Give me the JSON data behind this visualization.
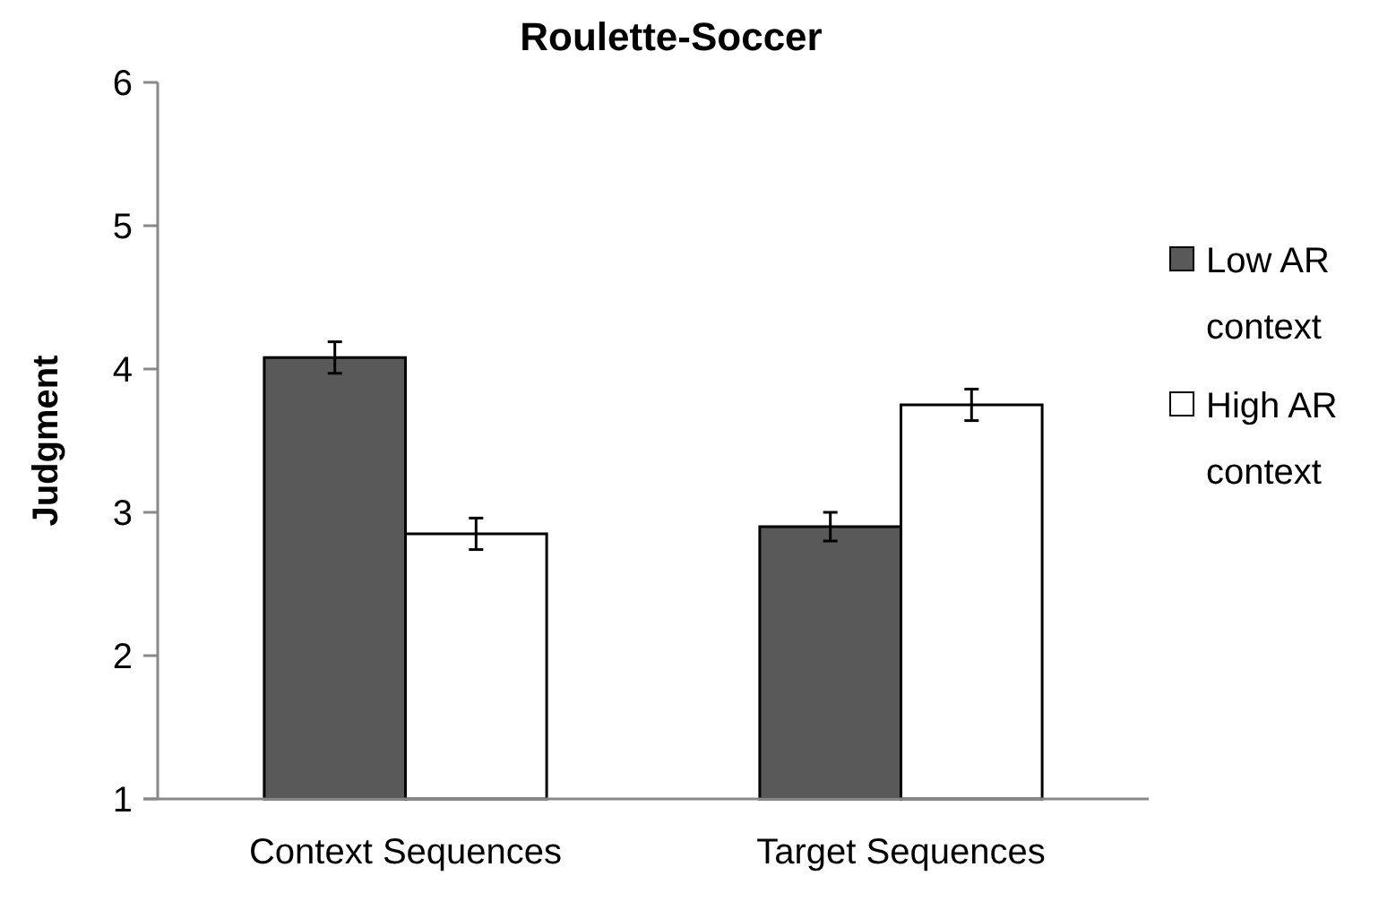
{
  "chart_data": {
    "type": "bar",
    "title": "Roulette-Soccer",
    "ylabel": "Judgment",
    "categories": [
      "Context Sequences",
      "Target Sequences"
    ],
    "series": [
      {
        "name": "Low AR context",
        "color": "#595959",
        "values": [
          4.08,
          2.9
        ],
        "errors": [
          0.11,
          0.1
        ]
      },
      {
        "name": "High AR context",
        "color": "#ffffff",
        "values": [
          2.85,
          3.75
        ],
        "errors": [
          0.11,
          0.11
        ]
      }
    ],
    "ylim": [
      1,
      6
    ],
    "yticks": [
      1,
      2,
      3,
      4,
      5,
      6
    ],
    "grid": false,
    "legend": "right"
  }
}
